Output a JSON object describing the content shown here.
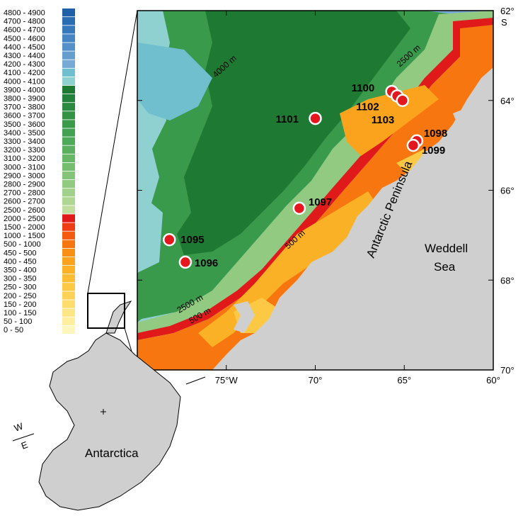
{
  "legend": {
    "items": [
      {
        "label": "4800 - 4900",
        "color": "#1f5fa8"
      },
      {
        "label": "4700 - 4800",
        "color": "#2a6cb2"
      },
      {
        "label": "4600 - 4700",
        "color": "#3778bb"
      },
      {
        "label": "4500 - 4600",
        "color": "#4684c3"
      },
      {
        "label": "4400 - 4500",
        "color": "#5590c9"
      },
      {
        "label": "4300 - 4400",
        "color": "#659dcf"
      },
      {
        "label": "4200 - 4300",
        "color": "#76a9d3"
      },
      {
        "label": "4100 - 4200",
        "color": "#6fbfcf"
      },
      {
        "label": "4000 - 4100",
        "color": "#8fd0d0"
      },
      {
        "label": "3900 - 4000",
        "color": "#1e7a32"
      },
      {
        "label": "3800 - 3900",
        "color": "#23823a"
      },
      {
        "label": "3700 - 3800",
        "color": "#2a8a40"
      },
      {
        "label": "3600 - 3700",
        "color": "#329246"
      },
      {
        "label": "3500 - 3600",
        "color": "#3a9a4c"
      },
      {
        "label": "3400 - 3500",
        "color": "#43a252"
      },
      {
        "label": "3300 - 3400",
        "color": "#4ea958"
      },
      {
        "label": "3200 - 3300",
        "color": "#5ab05f"
      },
      {
        "label": "3100 - 3200",
        "color": "#67b767"
      },
      {
        "label": "3000 - 3100",
        "color": "#75bd6f"
      },
      {
        "label": "2900 - 3000",
        "color": "#83c478"
      },
      {
        "label": "2800 - 2900",
        "color": "#92ca81"
      },
      {
        "label": "2700 - 2800",
        "color": "#a1d08b"
      },
      {
        "label": "2600 - 2700",
        "color": "#b0d694"
      },
      {
        "label": "2500 - 2600",
        "color": "#c0dc9f"
      },
      {
        "label": "2000 - 2500",
        "color": "#e01a1a"
      },
      {
        "label": "1500 - 2000",
        "color": "#ee3d12"
      },
      {
        "label": "1000 - 1500",
        "color": "#f35b10"
      },
      {
        "label": "500 - 1000",
        "color": "#f7760f"
      },
      {
        "label": "450 - 500",
        "color": "#f98f13"
      },
      {
        "label": "400 - 450",
        "color": "#fba31c"
      },
      {
        "label": "350 - 400",
        "color": "#fcb126"
      },
      {
        "label": "300 - 350",
        "color": "#fdbd33"
      },
      {
        "label": "250 - 300",
        "color": "#fdc843"
      },
      {
        "label": "200 - 250",
        "color": "#fed257"
      },
      {
        "label": "150 - 200",
        "color": "#fedc6d"
      },
      {
        "label": "100 - 150",
        "color": "#fee585"
      },
      {
        "label": "50 - 100",
        "color": "#feee9e"
      },
      {
        "label": "0 - 50",
        "color": "#fff6bd"
      }
    ]
  },
  "map": {
    "lon_ticks": [
      {
        "value": -75,
        "label": "75°W"
      },
      {
        "value": -70,
        "label": "70°"
      },
      {
        "value": -65,
        "label": "65°"
      },
      {
        "value": -60,
        "label": "60°"
      }
    ],
    "lat_ticks": [
      {
        "value": -62,
        "label": "62°"
      },
      {
        "value": -64,
        "label": "64°"
      },
      {
        "value": -66,
        "label": "66°"
      },
      {
        "value": -68,
        "label": "68°"
      },
      {
        "value": -70,
        "label": "70°"
      }
    ],
    "lat_unit": "S",
    "sites": [
      {
        "id": "1095",
        "label": "1095",
        "lon": -78.2,
        "lat": -67.1
      },
      {
        "id": "1096",
        "label": "1096",
        "lon": -77.3,
        "lat": -67.6
      },
      {
        "id": "1097",
        "label": "1097",
        "lon": -70.9,
        "lat": -66.4
      },
      {
        "id": "1098",
        "label": "1098",
        "lon": -64.3,
        "lat": -64.9
      },
      {
        "id": "1099",
        "label": "1099",
        "lon": -64.5,
        "lat": -65.0
      },
      {
        "id": "1100",
        "label": "1100",
        "lon": -65.7,
        "lat": -63.8
      },
      {
        "id": "1101",
        "label": "1101",
        "lon": -70.0,
        "lat": -64.4
      },
      {
        "id": "1102",
        "label": "1102",
        "lon": -65.4,
        "lat": -63.9
      },
      {
        "id": "1103",
        "label": "1103",
        "lon": -65.1,
        "lat": -64.0
      }
    ],
    "contour_labels": [
      "4000 m",
      "2500 m",
      "500 m",
      "2500 m",
      "500 m"
    ],
    "region_labels": {
      "peninsula": "Antarctic Peninsula",
      "weddell_line1": "Weddell",
      "weddell_line2": "Sea"
    }
  },
  "inset": {
    "continent_label": "Antarctica",
    "west_label": "W",
    "east_label": "E"
  },
  "colors": {
    "land": "#cfcfcf",
    "site_fill": "#e5171e",
    "site_stroke": "#ffffff",
    "frame": "#000000"
  }
}
